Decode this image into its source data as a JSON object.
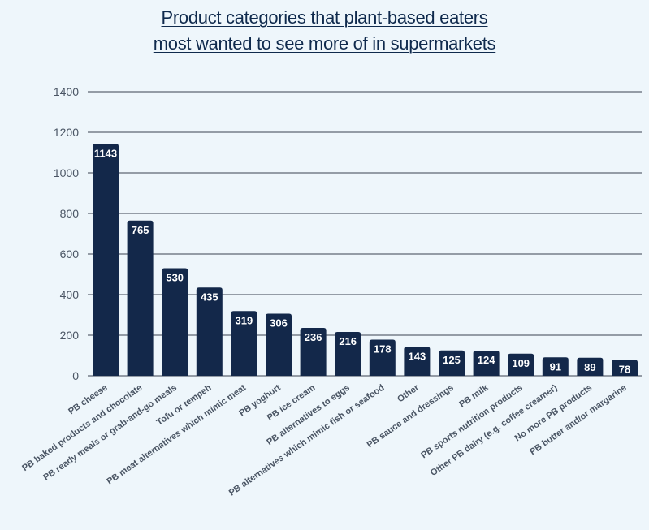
{
  "chart_data": {
    "type": "bar",
    "title_lines": [
      "Product categories that plant-based eaters",
      "most wanted to see more of in supermarkets"
    ],
    "xlabel": "",
    "ylabel": "",
    "ylim": [
      0,
      1400
    ],
    "yticks": [
      0,
      200,
      400,
      600,
      800,
      1000,
      1200,
      1400
    ],
    "grid": true,
    "legend": "none",
    "bar_color": "#13284a",
    "grid_color": "#3a4250",
    "categories": [
      "PB cheese",
      "PB baked products and chocolate",
      "PB ready meals or grab-and-go meals",
      "Tofu or tempeh",
      "PB meat alternatives which mimic meat",
      "PB yoghurt",
      "PB ice cream",
      "PB alternatives to eggs",
      "PB alternatives which mimic fish or seafood",
      "Other",
      "PB sauce and dressings",
      "PB milk",
      "PB sports nutrition products",
      "Other PB dairy (e.g. coffee creamer)",
      "No more PB products",
      "PB butter and/or margarine"
    ],
    "values": [
      1143,
      765,
      530,
      435,
      319,
      306,
      236,
      216,
      178,
      143,
      125,
      124,
      109,
      91,
      89,
      78
    ],
    "data_labels": [
      "1143",
      "765",
      "530",
      "435",
      "319",
      "306",
      "236",
      "216",
      "178",
      "143",
      "125",
      "124",
      "109",
      "91",
      "89",
      "78"
    ]
  }
}
